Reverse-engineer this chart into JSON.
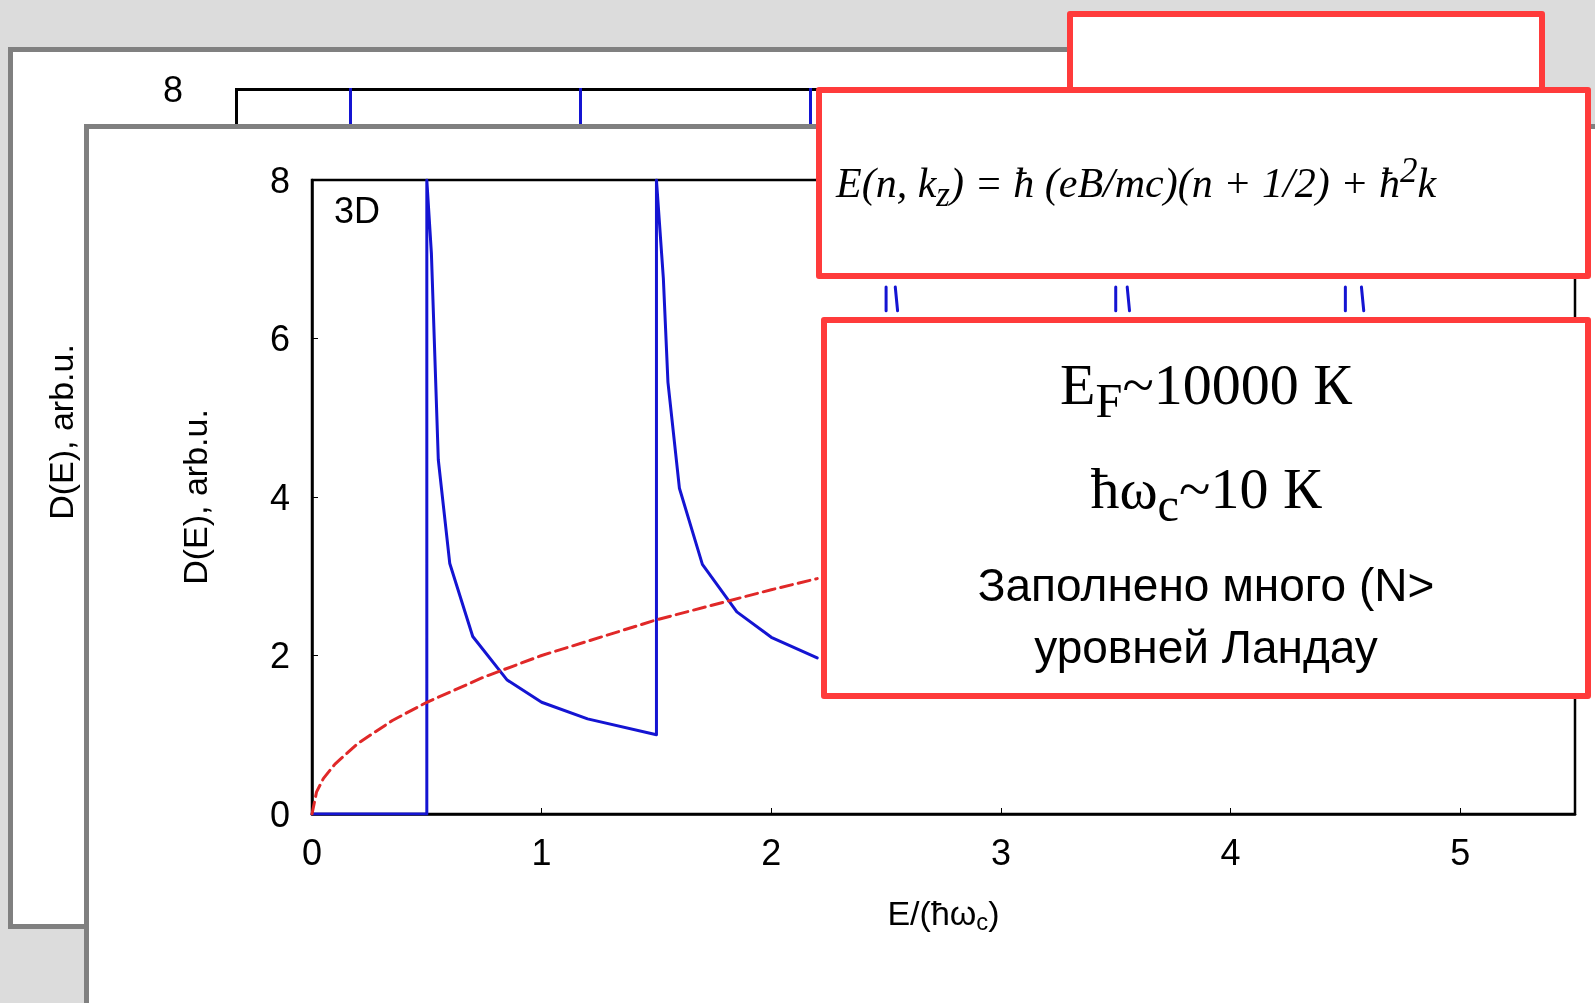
{
  "chart_data": [
    {
      "type": "other",
      "ylabel": "D(E), arb.u.",
      "annotations": [
        "8"
      ]
    },
    {
      "type": "line",
      "xlabel": "E/(ħω$_{c}$)",
      "ylabel": "D(E), arb.u.",
      "xlim": [
        0,
        5.5
      ],
      "xticks": [
        0,
        1,
        2,
        3,
        4,
        5
      ],
      "ylim": [
        0,
        8
      ],
      "yticks": [
        0,
        2,
        4,
        6,
        8
      ],
      "grid": false,
      "marker": "none",
      "annotations": [
        "3D",
        "E(n, k$_{z}$) = ħ (eB/mc)(n + 1/2) + ħ$^{2}$k",
        "E$_{F}$~10000 К",
        "ħω$_{c}$~10 К",
        "Заполнено много (N>",
        "уровней Ландау"
      ],
      "series": [
        {
          "color": "#1414d2",
          "line_style": "solid",
          "x": [
            0,
            0.5,
            0.5,
            0.52,
            0.55,
            0.6,
            0.7,
            0.85,
            1.0,
            1.2,
            1.5,
            1.5,
            1.53,
            1.55,
            1.6,
            1.7,
            1.85,
            2.0,
            2.2
          ],
          "values": [
            0,
            0,
            8,
            7.07,
            4.47,
            3.16,
            2.24,
            1.69,
            1.41,
            1.2,
            1.0,
            8,
            6.76,
            5.45,
            4.11,
            3.15,
            2.55,
            2.23,
            1.97
          ]
        },
        {
          "color": "#1414d2",
          "line_style": "solid",
          "x": [
            2.5,
            2.5
          ],
          "values": [
            6.35,
            6.65
          ]
        },
        {
          "color": "#1414d2",
          "line_style": "solid",
          "x": [
            2.54,
            2.55
          ],
          "values": [
            6.65,
            6.35
          ]
        },
        {
          "color": "#1414d2",
          "line_style": "solid",
          "x": [
            3.5,
            3.5
          ],
          "values": [
            6.35,
            6.65
          ]
        },
        {
          "color": "#1414d2",
          "line_style": "solid",
          "x": [
            3.55,
            3.56
          ],
          "values": [
            6.65,
            6.35
          ]
        },
        {
          "color": "#1414d2",
          "line_style": "solid",
          "x": [
            4.5,
            4.5
          ],
          "values": [
            6.35,
            6.65
          ]
        },
        {
          "color": "#1414d2",
          "line_style": "solid",
          "x": [
            4.57,
            4.58
          ],
          "values": [
            6.65,
            6.35
          ]
        },
        {
          "color": "#e02828",
          "line_style": "dashed",
          "x": [
            0,
            0.02,
            0.05,
            0.1,
            0.2,
            0.35,
            0.5,
            0.75,
            1.0,
            1.5,
            2.0,
            2.2
          ],
          "values": [
            0,
            0.28,
            0.45,
            0.63,
            0.89,
            1.18,
            1.41,
            1.73,
            2.0,
            2.45,
            2.83,
            2.97
          ]
        }
      ]
    }
  ]
}
